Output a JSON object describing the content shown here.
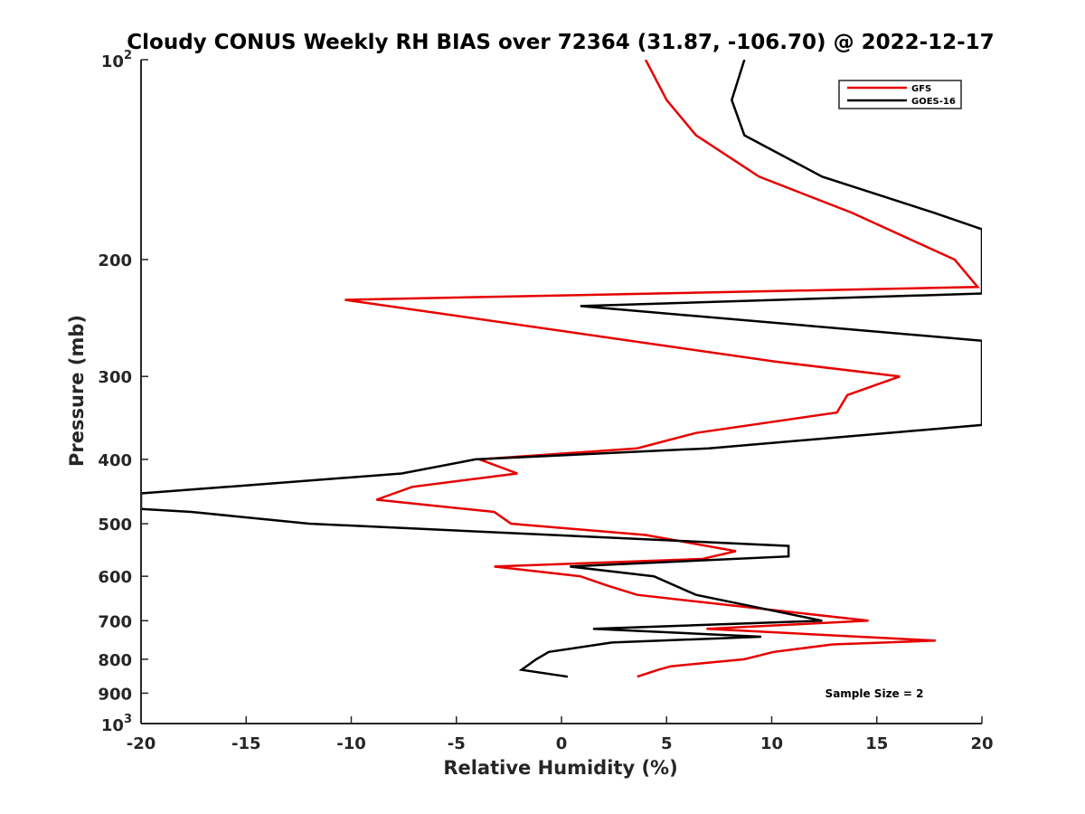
{
  "chart_data": {
    "type": "line",
    "title": "Cloudy CONUS Weekly RH BIAS over 72364 (31.87, -106.70) @ 2022-12-17",
    "xlabel": "Relative Humidity (%)",
    "ylabel": "Pressure (mb)",
    "xlim": [
      -20,
      20
    ],
    "ylim": [
      100,
      1000
    ],
    "yscale": "log",
    "y_reversed": true,
    "grid": false,
    "legend_position": "top-right",
    "x_ticks": [
      "-20",
      "-15",
      "-10",
      "-5",
      "0",
      "5",
      "10",
      "15",
      "20"
    ],
    "y_ticks": [
      {
        "value": 100,
        "base": "10",
        "exp": "2"
      },
      {
        "value": 200,
        "label": "200"
      },
      {
        "value": 300,
        "label": "300"
      },
      {
        "value": 400,
        "label": "400"
      },
      {
        "value": 500,
        "label": "500"
      },
      {
        "value": 600,
        "label": "600"
      },
      {
        "value": 700,
        "label": "700"
      },
      {
        "value": 800,
        "label": "800"
      },
      {
        "value": 900,
        "label": "900"
      },
      {
        "value": 1000,
        "base": "10",
        "exp": "3"
      }
    ],
    "annotation": "Sample Size = 2",
    "series": [
      {
        "name": "GFS",
        "color": "#e60000",
        "points": [
          [
            4.0,
            100
          ],
          [
            5.0,
            115
          ],
          [
            6.4,
            130
          ],
          [
            9.4,
            150
          ],
          [
            13.8,
            170
          ],
          [
            18.7,
            200
          ],
          [
            19.8,
            220
          ],
          [
            -10.3,
            230
          ],
          [
            10.2,
            285
          ],
          [
            16.1,
            300
          ],
          [
            13.6,
            320
          ],
          [
            13.1,
            340
          ],
          [
            6.4,
            365
          ],
          [
            3.6,
            385
          ],
          [
            -3.9,
            400
          ],
          [
            -2.1,
            420
          ],
          [
            -7.1,
            440
          ],
          [
            -8.8,
            460
          ],
          [
            -3.2,
            480
          ],
          [
            -2.4,
            500
          ],
          [
            4.0,
            520
          ],
          [
            8.3,
            550
          ],
          [
            6.7,
            565
          ],
          [
            -3.2,
            580
          ],
          [
            0.9,
            600
          ],
          [
            2.2,
            620
          ],
          [
            3.6,
            640
          ],
          [
            14.6,
            700
          ],
          [
            6.9,
            720
          ],
          [
            17.8,
            750
          ],
          [
            12.9,
            760
          ],
          [
            10.1,
            780
          ],
          [
            8.7,
            800
          ],
          [
            5.2,
            820
          ],
          [
            4.6,
            830
          ],
          [
            3.6,
            850
          ]
        ]
      },
      {
        "name": "GOES-16",
        "color": "#000000",
        "points": [
          [
            8.7,
            100
          ],
          [
            8.1,
            115
          ],
          [
            8.7,
            130
          ],
          [
            12.4,
            150
          ],
          [
            17.7,
            170
          ],
          [
            20.0,
            180
          ],
          [
            20.0,
            225
          ],
          [
            0.9,
            235
          ],
          [
            20.0,
            265
          ],
          [
            20.0,
            355
          ],
          [
            7.0,
            385
          ],
          [
            -4.1,
            400
          ],
          [
            -7.6,
            420
          ],
          [
            -15.9,
            440
          ],
          [
            -20.0,
            450
          ],
          [
            -20.0,
            475
          ],
          [
            -17.6,
            480
          ],
          [
            -12.0,
            500
          ],
          [
            10.8,
            540
          ],
          [
            10.8,
            560
          ],
          [
            0.4,
            580
          ],
          [
            4.4,
            600
          ],
          [
            6.4,
            640
          ],
          [
            12.4,
            700
          ],
          [
            1.5,
            720
          ],
          [
            9.5,
            740
          ],
          [
            2.4,
            755
          ],
          [
            -0.6,
            780
          ],
          [
            -1.2,
            800
          ],
          [
            -1.9,
            830
          ],
          [
            0.3,
            850
          ]
        ]
      }
    ]
  }
}
